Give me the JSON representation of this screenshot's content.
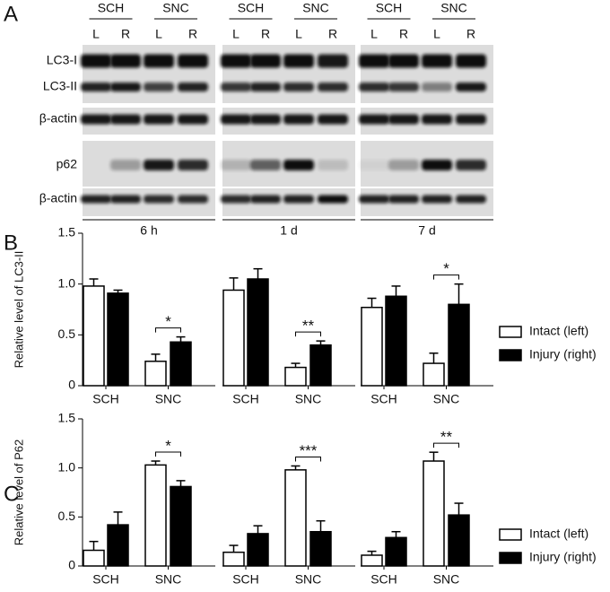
{
  "panel_a": {
    "label": "A",
    "lanes": [
      "L",
      "R"
    ],
    "groups": [
      {
        "conditions": [
          "SCH",
          "SNC"
        ],
        "time": "6 h"
      },
      {
        "conditions": [
          "SCH",
          "SNC"
        ],
        "time": "1 d"
      },
      {
        "conditions": [
          "SCH",
          "SNC"
        ],
        "time": "7 d"
      }
    ],
    "rows": [
      "LC3-I",
      "LC3-II",
      "β-actin",
      "p62",
      "β-actin"
    ]
  },
  "chart_data": [
    {
      "type": "bar",
      "panel_label": "B",
      "ylabel": "Relative level of LC3-II",
      "ylim": [
        0,
        1.5
      ],
      "yticks": [
        0,
        0.5,
        {
          "value": 1,
          "label": "1.0"
        },
        1.5
      ],
      "categories": [
        "SCH",
        "SNC",
        "SCH",
        "SNC",
        "SCH",
        "SNC"
      ],
      "series": [
        {
          "name": "Intact (left)",
          "color": "#ffffff",
          "values": [
            0.98,
            0.24,
            0.94,
            0.18,
            0.77,
            0.22
          ],
          "errors": [
            0.07,
            0.07,
            0.12,
            0.04,
            0.09,
            0.1
          ]
        },
        {
          "name": "Injury (right)",
          "color": "#000000",
          "values": [
            0.91,
            0.43,
            1.05,
            0.4,
            0.88,
            0.8
          ],
          "errors": [
            0.03,
            0.05,
            0.1,
            0.04,
            0.1,
            0.2
          ]
        }
      ],
      "annotations": [
        "*",
        "**",
        "*"
      ]
    },
    {
      "type": "bar",
      "panel_label": "C",
      "ylabel": "Relative level of P62",
      "ylim": [
        0,
        1.5
      ],
      "yticks": [
        0,
        0.5,
        {
          "value": 1,
          "label": "1.0"
        },
        1.5
      ],
      "categories": [
        "SCH",
        "SNC",
        "SCH",
        "SNC",
        "SCH",
        "SNC"
      ],
      "series": [
        {
          "name": "Intact (left)",
          "color": "#ffffff",
          "values": [
            0.16,
            1.03,
            0.14,
            0.98,
            0.11,
            1.07
          ],
          "errors": [
            0.09,
            0.04,
            0.07,
            0.04,
            0.04,
            0.09
          ]
        },
        {
          "name": "Injury (right)",
          "color": "#000000",
          "values": [
            0.42,
            0.81,
            0.33,
            0.35,
            0.29,
            0.52
          ],
          "errors": [
            0.13,
            0.06,
            0.08,
            0.11,
            0.06,
            0.12
          ]
        }
      ],
      "annotations": [
        "*",
        "***",
        "**"
      ]
    }
  ]
}
